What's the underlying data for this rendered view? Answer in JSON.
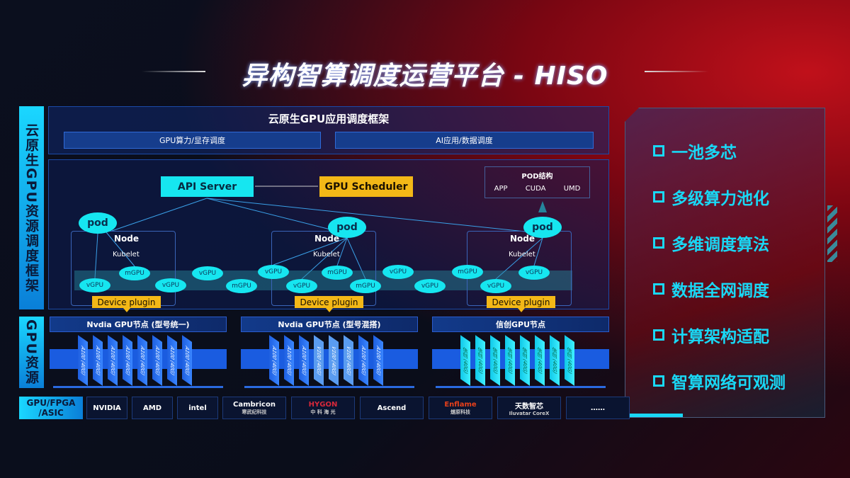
{
  "title": "异构智算调度运营平台 - HISO",
  "side_labels": {
    "top": "云原生GPU资源调度框架",
    "bottom": "GPU资源"
  },
  "framework": {
    "title": "云原生GPU应用调度框架",
    "boxes": [
      "GPU算力/显存调度",
      "AI应用/数据调度"
    ]
  },
  "api_server": "API Server",
  "gpu_scheduler": "GPU Scheduler",
  "pod_structure": {
    "title": "POD结构",
    "items": [
      "APP",
      "CUDA",
      "UMD"
    ]
  },
  "node": {
    "label": "Node",
    "kubelet": "Kubelet",
    "pod": "pod",
    "device_plugin": "Device plugin"
  },
  "gpus": [
    "vGPU",
    "mGPU",
    "vGPU",
    "vGPU",
    "mGPU",
    "vGPU",
    "vGPU",
    "mGPU",
    "mGPU",
    "vGPU",
    "vGPU",
    "mGPU",
    "vGPU",
    "vGPU"
  ],
  "gpu_nodes": [
    {
      "title": "Nvdia GPU节点 (型号统一)",
      "cards": [
        "A100 (40G)",
        "A100 (40G)",
        "A100 (40G)",
        "A100 (40G)",
        "A100 (40G)",
        "A100 (40G)",
        "A100 (40G)",
        "A100 (40G)"
      ]
    },
    {
      "title": "Nvdia GPU节点 (型号混搭)",
      "cards": [
        "A100 (40G)",
        "A100 (40G)",
        "A100 (40G)",
        "V100 (40G)",
        "V100 (40G)",
        "V100 (40G)",
        "A100 (40G)",
        "A100 (40G)"
      ]
    },
    {
      "title": "信创GPU节点",
      "cards": [
        "信创 (40G)",
        "信创 (40G)",
        "信创 (40G)",
        "信创 (40G)",
        "信创 (40G)",
        "信创 (40G)",
        "信创 (40G)",
        "信创 (40G)"
      ]
    }
  ],
  "chip_label": "GPU/FPGA /ASIC",
  "vendors": [
    {
      "name": "NVIDIA",
      "sub": ""
    },
    {
      "name": "AMD",
      "sub": ""
    },
    {
      "name": "intel",
      "sub": ""
    },
    {
      "name": "Cambricon",
      "sub": "寒武纪科技"
    },
    {
      "name": "HYGON",
      "sub": "中 科 海 光"
    },
    {
      "name": "Ascend",
      "sub": ""
    },
    {
      "name": "Enflame",
      "sub": "燧原科技"
    },
    {
      "name": "天数智芯",
      "sub": "Iluvatar CoreX"
    },
    {
      "name": "……",
      "sub": ""
    }
  ],
  "features": [
    "一池多芯",
    "多级算力池化",
    "多维调度算法",
    "数据全网调度",
    "计算架构适配",
    "智算网络可观测"
  ],
  "colors": {
    "cyan": "#16e6f0",
    "yellow": "#f3b817",
    "blue": "#1a5ce0",
    "red": "#c0101a"
  }
}
